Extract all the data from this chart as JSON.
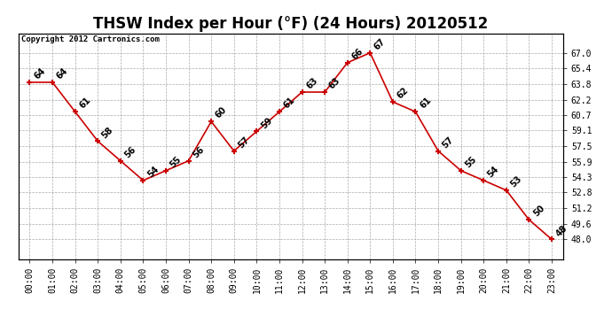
{
  "title": "THSW Index per Hour (°F) (24 Hours) 20120512",
  "copyright": "Copyright 2012 Cartronics.com",
  "hours": [
    "00:00",
    "01:00",
    "02:00",
    "03:00",
    "04:00",
    "05:00",
    "06:00",
    "07:00",
    "08:00",
    "09:00",
    "10:00",
    "11:00",
    "12:00",
    "13:00",
    "14:00",
    "15:00",
    "16:00",
    "17:00",
    "18:00",
    "19:00",
    "20:00",
    "21:00",
    "22:00",
    "23:00"
  ],
  "values": [
    64,
    64,
    61,
    58,
    56,
    54,
    55,
    56,
    60,
    57,
    59,
    61,
    63,
    63,
    66,
    67,
    62,
    61,
    57,
    55,
    54,
    53,
    50,
    48
  ],
  "line_color": "#cc0000",
  "marker": "+",
  "marker_size": 5,
  "marker_color": "#cc0000",
  "bg_color": "#ffffff",
  "grid_color": "#aaaaaa",
  "ylim": [
    46.0,
    69.0
  ],
  "right_ticks": [
    67.0,
    65.4,
    63.8,
    62.2,
    60.7,
    59.1,
    57.5,
    55.9,
    54.3,
    52.8,
    51.2,
    49.6,
    48.0
  ],
  "title_fontsize": 12,
  "tick_fontsize": 7,
  "annot_fontsize": 7,
  "copyright_fontsize": 6.5
}
